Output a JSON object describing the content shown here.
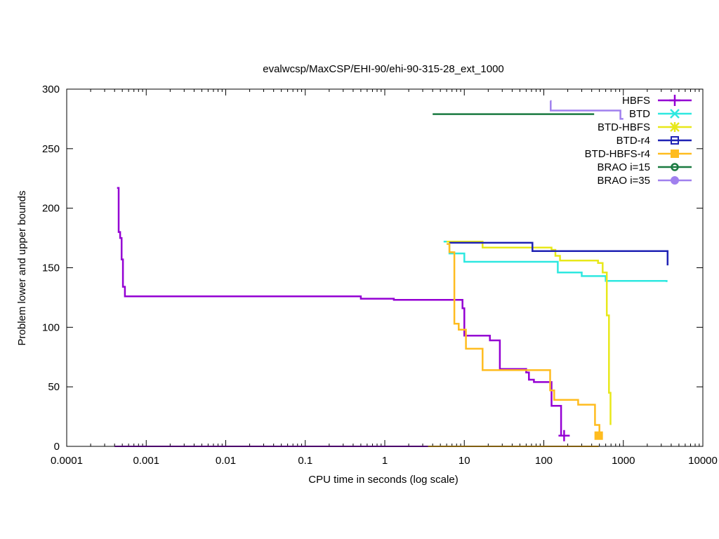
{
  "chart_data": {
    "type": "line",
    "title": "evalwcsp/MaxCSP/EHI-90/ehi-90-315-28_ext_1000",
    "xlabel": "CPU time in seconds (log scale)",
    "ylabel": "Problem lower and upper bounds",
    "xscale": "log",
    "xlim": [
      0.0001,
      10000
    ],
    "ylim": [
      0,
      300
    ],
    "x_ticks": [
      "0.0001",
      "0.001",
      "0.01",
      "0.1",
      "1",
      "10",
      "100",
      "1000",
      "10000"
    ],
    "y_ticks": [
      "0",
      "50",
      "100",
      "150",
      "200",
      "250",
      "300"
    ],
    "legend_position": "top-right",
    "series": [
      {
        "name": "HBFS",
        "color": "#9400d3",
        "marker": "plus",
        "marker_point": [
          180,
          9
        ],
        "upper": [
          [
            0.00043,
            217
          ],
          [
            0.00045,
            180
          ],
          [
            0.00047,
            175
          ],
          [
            0.00049,
            157
          ],
          [
            0.00051,
            134
          ],
          [
            0.00054,
            126
          ],
          [
            0.5,
            124
          ],
          [
            1.3,
            123
          ],
          [
            9.5,
            116
          ],
          [
            10,
            93
          ],
          [
            20,
            93
          ],
          [
            21,
            89
          ],
          [
            28,
            65
          ],
          [
            60,
            62
          ],
          [
            65,
            56
          ],
          [
            75,
            54
          ],
          [
            115,
            54
          ],
          [
            125,
            34
          ],
          [
            155,
            34
          ],
          [
            165,
            9
          ],
          [
            170,
            9
          ]
        ],
        "lower": [
          [
            0.0004,
            0
          ],
          [
            3.5,
            0
          ]
        ]
      },
      {
        "name": "BTD",
        "color": "#2ee8e0",
        "marker": "cross",
        "upper": [
          [
            5.5,
            172
          ],
          [
            6.5,
            162
          ],
          [
            10,
            155
          ],
          [
            150,
            146
          ],
          [
            300,
            143
          ],
          [
            600,
            139
          ],
          [
            3500,
            138
          ]
        ],
        "lower": []
      },
      {
        "name": "BTD-HBFS",
        "color": "#e8e81a",
        "marker": "star",
        "upper": [
          [
            6,
            172
          ],
          [
            15,
            172
          ],
          [
            17,
            167
          ],
          [
            125,
            165
          ],
          [
            140,
            160
          ],
          [
            160,
            156
          ],
          [
            480,
            154
          ],
          [
            550,
            146
          ],
          [
            620,
            110
          ],
          [
            660,
            45
          ],
          [
            690,
            18
          ]
        ],
        "lower": []
      },
      {
        "name": "BTD-r4",
        "color": "#1f22b4",
        "marker": "square",
        "upper": [
          [
            6.5,
            171
          ],
          [
            72,
            164
          ],
          [
            3600,
            164
          ],
          [
            3600,
            152
          ]
        ],
        "lower": []
      },
      {
        "name": "BTD-HBFS-r4",
        "color": "#ffbc1f",
        "marker": "filled-square",
        "marker_point": [
          490,
          9
        ],
        "upper": [
          [
            6,
            170
          ],
          [
            6.5,
            163
          ],
          [
            7.5,
            153
          ],
          [
            7.5,
            103
          ],
          [
            8.5,
            98
          ],
          [
            10.5,
            82
          ],
          [
            17,
            82
          ],
          [
            17,
            64
          ],
          [
            105,
            64
          ],
          [
            120,
            47
          ],
          [
            135,
            39
          ],
          [
            270,
            39
          ],
          [
            270,
            35
          ],
          [
            420,
            35
          ],
          [
            440,
            18
          ],
          [
            500,
            9
          ]
        ],
        "lower": [
          [
            3.5,
            0
          ],
          [
            490,
            0
          ]
        ]
      },
      {
        "name": "BRAO i=15",
        "color": "#1a7a40",
        "marker": "ring",
        "upper": [
          [
            4,
            279
          ],
          [
            430,
            279
          ]
        ],
        "lower": []
      },
      {
        "name": "BRAO i=35",
        "color": "#a080ee",
        "marker": "filled-circle",
        "upper": [
          [
            120,
            290
          ],
          [
            122,
            282
          ],
          [
            900,
            282
          ],
          [
            920,
            275
          ],
          [
            1000,
            275
          ]
        ],
        "lower": []
      }
    ]
  }
}
